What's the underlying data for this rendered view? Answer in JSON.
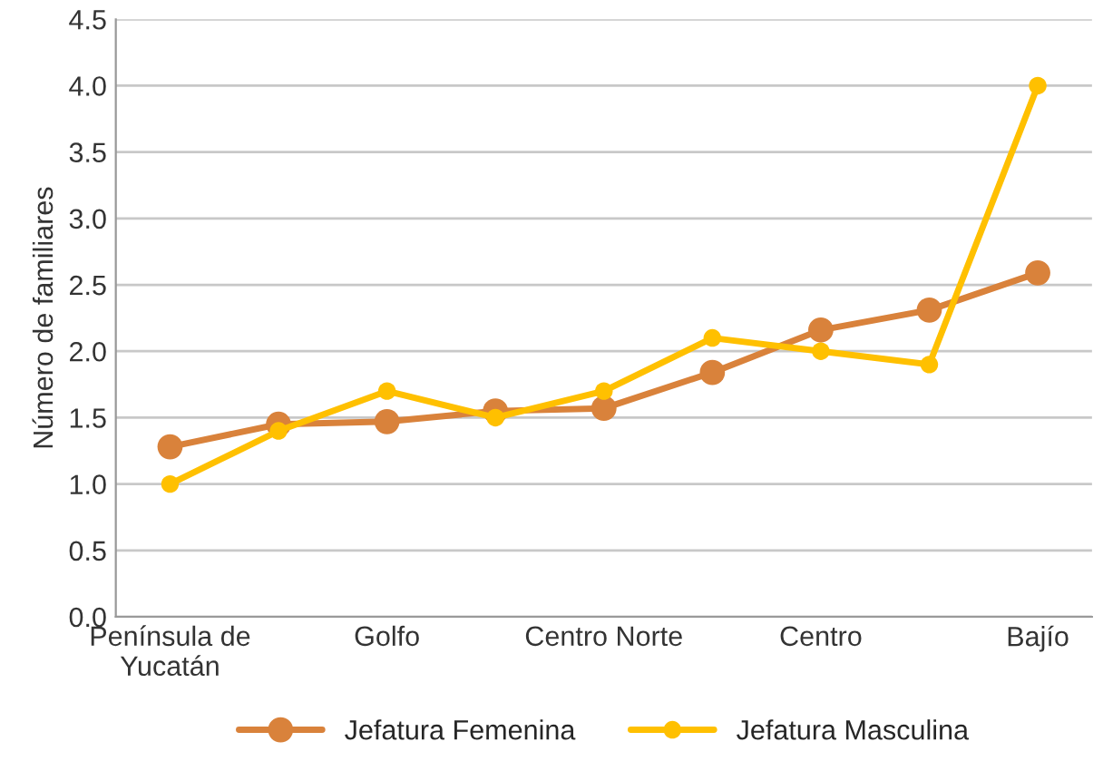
{
  "chart_data": {
    "type": "line",
    "ylabel": "Número de familiares",
    "categories": [
      "Península de\nYucatán",
      null,
      "Golfo",
      null,
      "Centro Norte",
      null,
      "Centro",
      null,
      "Bajío"
    ],
    "series": [
      {
        "name": "Jefatura Femenina",
        "color": "#d9823b",
        "values": [
          1.28,
          1.45,
          1.47,
          1.55,
          1.57,
          1.84,
          2.16,
          2.31,
          2.59
        ]
      },
      {
        "name": "Jefatura Masculina",
        "color": "#ffc000",
        "values": [
          1.0,
          1.4,
          1.7,
          1.5,
          1.7,
          2.1,
          2.0,
          1.9,
          4.0
        ]
      }
    ],
    "ylim": [
      0,
      4.5
    ],
    "yticks": [
      {
        "value": 0,
        "label": "0.0"
      },
      {
        "value": 0.5,
        "label": "0.5"
      },
      {
        "value": 1,
        "label": "1.0"
      },
      {
        "value": 1.5,
        "label": "1.5"
      },
      {
        "value": 2,
        "label": "2.0"
      },
      {
        "value": 2.5,
        "label": "2.5"
      },
      {
        "value": 3,
        "label": "3.0"
      },
      {
        "value": 3.5,
        "label": "3.5"
      },
      {
        "value": 4,
        "label": "4.0"
      },
      {
        "value": 4.5,
        "label": "4.5"
      }
    ],
    "grid": "y",
    "legend": "bottom",
    "marker": "circle",
    "line_style": "solid"
  }
}
